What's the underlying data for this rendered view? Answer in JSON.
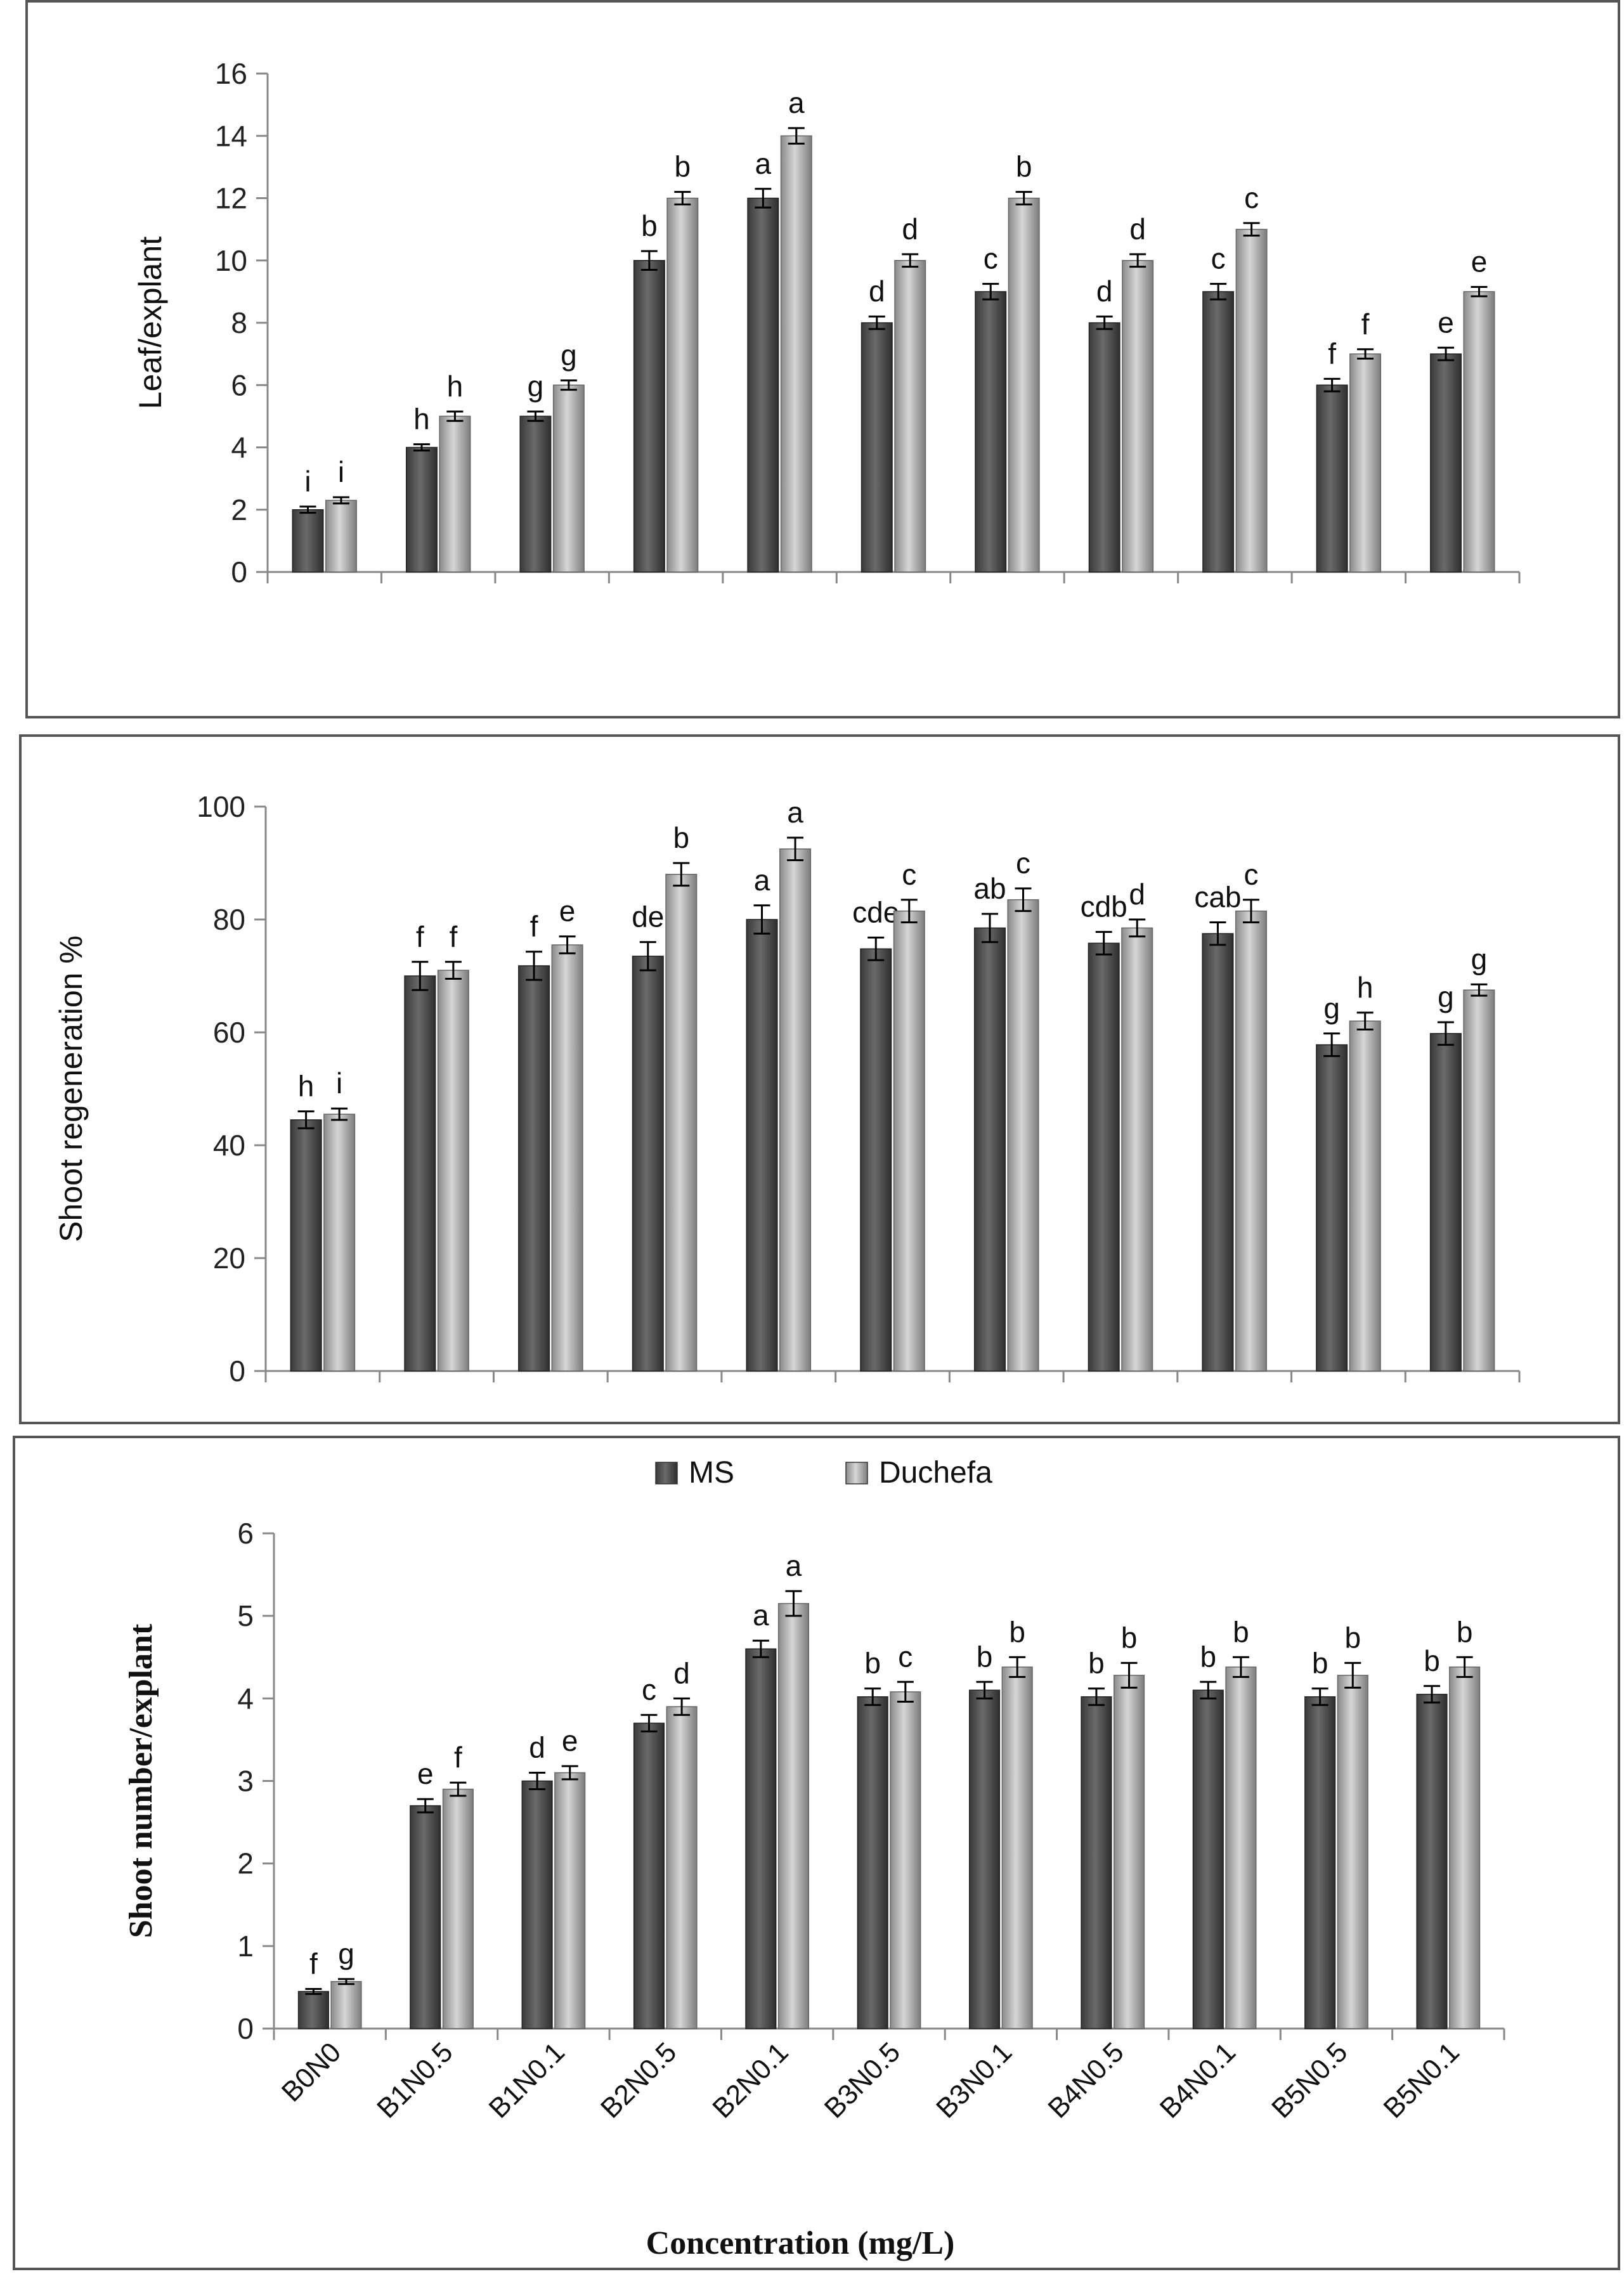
{
  "chart_data": [
    {
      "type": "bar",
      "categories": [
        "B0N0",
        "B1N0.5",
        "B1N0.1",
        "B2N0.5",
        "B2N0.1",
        "B3N0.5",
        "B3N0.1",
        "B4N0.5",
        "B4N0.1",
        "B5N0.5",
        "B5N0.1"
      ],
      "xlabel": "",
      "ylabel": "Leaf/explant",
      "ylim": [
        0,
        16
      ],
      "yticks": [
        0,
        2,
        4,
        6,
        8,
        10,
        12,
        14,
        16
      ],
      "grid": false,
      "legend": "none",
      "series": [
        {
          "values": [
            2.0,
            4.0,
            5.0,
            10.0,
            12.0,
            8.0,
            9.0,
            8.0,
            9.0,
            6.0,
            7.0
          ],
          "errors": [
            0.1,
            0.1,
            0.15,
            0.3,
            0.3,
            0.2,
            0.25,
            0.2,
            0.25,
            0.2,
            0.2
          ],
          "letters": [
            "i",
            "h",
            "g",
            "b",
            "a",
            "d",
            "c",
            "d",
            "c",
            "f",
            "e"
          ]
        },
        {
          "values": [
            2.3,
            5.0,
            6.0,
            12.0,
            14.0,
            10.0,
            12.0,
            10.0,
            11.0,
            7.0,
            9.0
          ],
          "errors": [
            0.1,
            0.15,
            0.15,
            0.2,
            0.25,
            0.2,
            0.2,
            0.2,
            0.2,
            0.15,
            0.15
          ],
          "letters": [
            "i",
            "h",
            "g",
            "b",
            "a",
            "d",
            "b",
            "d",
            "c",
            "f",
            "e"
          ]
        }
      ]
    },
    {
      "type": "bar",
      "categories": [
        "B0N0",
        "B1N0.5",
        "B1N0.1",
        "B2N0.5",
        "B2N0.1",
        "B3N0.5",
        "B3N0.1",
        "B4N0.5",
        "B4N0.1",
        "B5N0.5",
        "B5N0.1"
      ],
      "xlabel": "",
      "ylabel": "Shoot regeneration %",
      "ylim": [
        0,
        100
      ],
      "yticks": [
        0,
        20,
        40,
        60,
        80,
        100
      ],
      "grid": false,
      "legend": "none",
      "series": [
        {
          "values": [
            44.5,
            70.0,
            71.8,
            73.5,
            80.0,
            74.8,
            78.5,
            75.8,
            77.5,
            57.8,
            59.8
          ],
          "errors": [
            1.5,
            2.5,
            2.5,
            2.5,
            2.5,
            2.0,
            2.5,
            2.0,
            2.0,
            2.0,
            2.0
          ],
          "letters": [
            "h",
            "f",
            "f",
            "de",
            "a",
            "cde",
            "ab",
            "cdb",
            "cab",
            "g",
            "g"
          ]
        },
        {
          "values": [
            45.5,
            71.0,
            75.5,
            88.0,
            92.5,
            81.5,
            83.5,
            78.5,
            81.5,
            62.0,
            67.5
          ],
          "errors": [
            1.0,
            1.5,
            1.5,
            2.0,
            2.0,
            2.0,
            2.0,
            1.5,
            2.0,
            1.5,
            1.0
          ],
          "letters": [
            "i",
            "f",
            "e",
            "b",
            "a",
            "c",
            "c",
            "d",
            "c",
            "h",
            "g"
          ]
        }
      ]
    },
    {
      "type": "bar",
      "categories": [
        "B0N0",
        "B1N0.5",
        "B1N0.1",
        "B2N0.5",
        "B2N0.1",
        "B3N0.5",
        "B3N0.1",
        "B4N0.5",
        "B4N0.1",
        "B5N0.5",
        "B5N0.1"
      ],
      "xlabel": "Concentration (mg/L)",
      "ylabel": "Shoot number/explant",
      "ylim": [
        0,
        6
      ],
      "yticks": [
        0,
        1,
        2,
        3,
        4,
        5,
        6
      ],
      "grid": false,
      "legend": "top-center",
      "series": [
        {
          "name": "MS",
          "values": [
            0.45,
            2.7,
            3.0,
            3.7,
            4.6,
            4.02,
            4.1,
            4.02,
            4.1,
            4.02,
            4.05
          ],
          "errors": [
            0.03,
            0.08,
            0.1,
            0.1,
            0.1,
            0.1,
            0.1,
            0.1,
            0.1,
            0.1,
            0.1
          ],
          "letters": [
            "f",
            "e",
            "d",
            "c",
            "a",
            "b",
            "b",
            "b",
            "b",
            "b",
            "b"
          ]
        },
        {
          "name": "Duchefa",
          "values": [
            0.57,
            2.9,
            3.1,
            3.9,
            5.15,
            4.08,
            4.38,
            4.28,
            4.38,
            4.28,
            4.38
          ],
          "errors": [
            0.03,
            0.08,
            0.08,
            0.1,
            0.15,
            0.12,
            0.12,
            0.15,
            0.12,
            0.15,
            0.12
          ],
          "letters": [
            "g",
            "f",
            "e",
            "d",
            "a",
            "c",
            "b",
            "b",
            "b",
            "b",
            "b"
          ]
        }
      ]
    }
  ]
}
